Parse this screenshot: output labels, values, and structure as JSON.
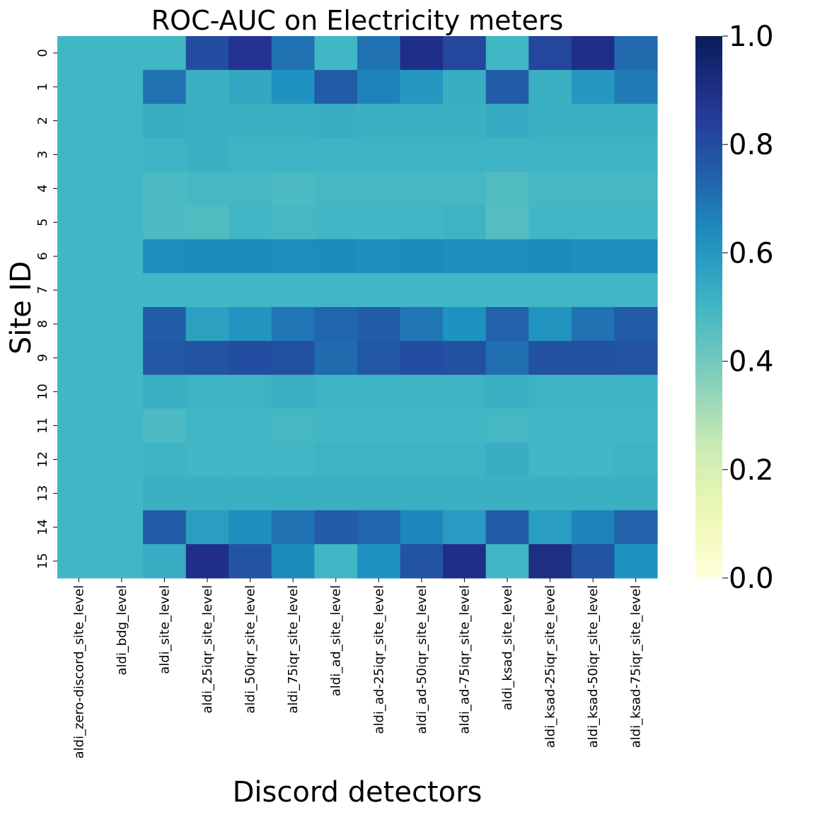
{
  "chart_data": {
    "type": "heatmap",
    "title": "ROC-AUC on Electricity meters",
    "xlabel": "Discord detectors",
    "ylabel": "Site ID",
    "x_categories": [
      "aldi_zero-discord_site_level",
      "aldi_bdg_level",
      "aldi_site_level",
      "aldi_25iqr_site_level",
      "aldi_50iqr_site_level",
      "aldi_75iqr_site_level",
      "aldi_ad_site_level",
      "aldi_ad-25iqr_site_level",
      "aldi_ad-50iqr_site_level",
      "aldi_ad-75iqr_site_level",
      "aldi_ksad_site_level",
      "aldi_ksad-25iqr_site_level",
      "aldi_ksad-50iqr_site_level",
      "aldi_ksad-75iqr_site_level"
    ],
    "y_categories": [
      "0",
      "1",
      "2",
      "3",
      "4",
      "5",
      "6",
      "7",
      "8",
      "9",
      "10",
      "11",
      "12",
      "13",
      "14",
      "15"
    ],
    "values": [
      [
        0.5,
        0.5,
        0.5,
        0.8,
        0.88,
        0.7,
        0.5,
        0.7,
        0.9,
        0.82,
        0.5,
        0.82,
        0.9,
        0.72
      ],
      [
        0.5,
        0.5,
        0.7,
        0.52,
        0.55,
        0.62,
        0.76,
        0.66,
        0.6,
        0.53,
        0.76,
        0.52,
        0.6,
        0.68
      ],
      [
        0.5,
        0.5,
        0.53,
        0.52,
        0.52,
        0.52,
        0.53,
        0.52,
        0.52,
        0.52,
        0.54,
        0.52,
        0.52,
        0.52
      ],
      [
        0.5,
        0.5,
        0.51,
        0.52,
        0.51,
        0.51,
        0.51,
        0.51,
        0.51,
        0.51,
        0.51,
        0.51,
        0.51,
        0.51
      ],
      [
        0.5,
        0.5,
        0.48,
        0.49,
        0.49,
        0.48,
        0.49,
        0.49,
        0.49,
        0.49,
        0.47,
        0.49,
        0.49,
        0.49
      ],
      [
        0.5,
        0.5,
        0.48,
        0.47,
        0.5,
        0.49,
        0.5,
        0.5,
        0.5,
        0.51,
        0.46,
        0.5,
        0.5,
        0.5
      ],
      [
        0.5,
        0.5,
        0.63,
        0.64,
        0.64,
        0.63,
        0.64,
        0.63,
        0.64,
        0.63,
        0.63,
        0.64,
        0.63,
        0.63
      ],
      [
        0.5,
        0.5,
        0.5,
        0.5,
        0.5,
        0.5,
        0.5,
        0.5,
        0.5,
        0.5,
        0.5,
        0.5,
        0.5,
        0.5
      ],
      [
        0.5,
        0.5,
        0.75,
        0.57,
        0.61,
        0.69,
        0.73,
        0.75,
        0.69,
        0.62,
        0.74,
        0.61,
        0.7,
        0.76
      ],
      [
        0.5,
        0.5,
        0.77,
        0.78,
        0.8,
        0.79,
        0.72,
        0.77,
        0.8,
        0.79,
        0.71,
        0.79,
        0.79,
        0.78
      ],
      [
        0.5,
        0.5,
        0.52,
        0.51,
        0.51,
        0.52,
        0.51,
        0.51,
        0.51,
        0.51,
        0.52,
        0.51,
        0.51,
        0.51
      ],
      [
        0.5,
        0.5,
        0.48,
        0.5,
        0.5,
        0.49,
        0.5,
        0.5,
        0.5,
        0.5,
        0.49,
        0.5,
        0.5,
        0.5
      ],
      [
        0.5,
        0.5,
        0.51,
        0.5,
        0.5,
        0.5,
        0.51,
        0.51,
        0.51,
        0.51,
        0.53,
        0.5,
        0.5,
        0.51
      ],
      [
        0.5,
        0.5,
        0.52,
        0.52,
        0.52,
        0.52,
        0.52,
        0.52,
        0.52,
        0.52,
        0.52,
        0.52,
        0.52,
        0.52
      ],
      [
        0.5,
        0.5,
        0.76,
        0.58,
        0.63,
        0.7,
        0.76,
        0.73,
        0.65,
        0.59,
        0.76,
        0.58,
        0.66,
        0.74
      ],
      [
        0.5,
        0.5,
        0.53,
        0.9,
        0.78,
        0.64,
        0.5,
        0.62,
        0.78,
        0.9,
        0.5,
        0.91,
        0.78,
        0.62
      ]
    ],
    "vmin": 0.0,
    "vmax": 1.0,
    "colormap": "YlGnBu",
    "colorbar_ticks": [
      "0.0",
      "0.2",
      "0.4",
      "0.6",
      "0.8",
      "1.0"
    ],
    "grid": false
  }
}
